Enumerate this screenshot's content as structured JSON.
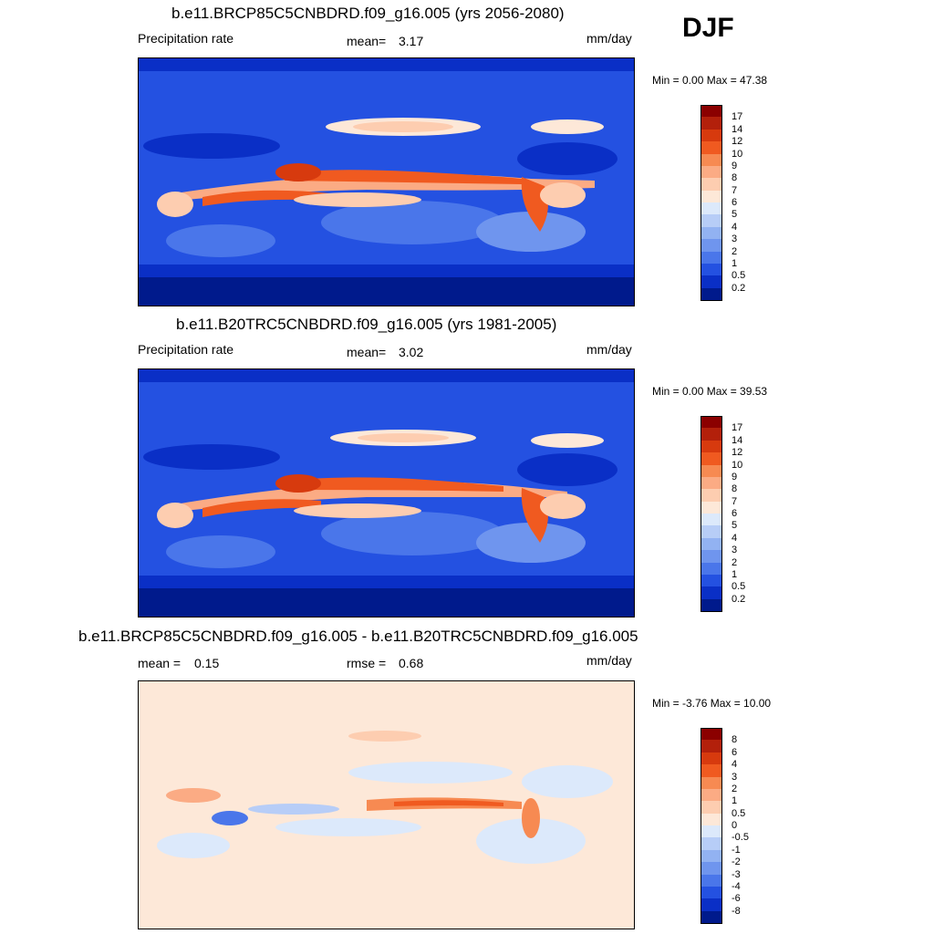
{
  "season": "DJF",
  "units": "mm/day",
  "panels": [
    {
      "title": "b.e11.BRCP85C5CNBDRD.f09_g16.005 (yrs 2056-2080)",
      "left_label": "Precipitation rate",
      "mid_label": "mean=",
      "mid_value": "3.17",
      "right_label": "mm/day",
      "minmax": "Min =   0.00 Max =  47.38",
      "colorbar": {
        "labels": [
          "17",
          "14",
          "12",
          "10",
          "9",
          "8",
          "7",
          "6",
          "5",
          "4",
          "3",
          "2",
          "1",
          "0.5",
          "0.2"
        ],
        "colors": [
          "#8b0000",
          "#b3200b",
          "#d73a0e",
          "#f05a20",
          "#f78a52",
          "#fbab84",
          "#fdcdb0",
          "#fde8d8",
          "#dce9fb",
          "#b7cdf7",
          "#92b2f2",
          "#6f95ee",
          "#4a76ea",
          "#2451e1",
          "#0a2fc6",
          "#001a8c"
        ]
      }
    },
    {
      "title": "b.e11.B20TRC5CNBDRD.f09_g16.005 (yrs 1981-2005)",
      "left_label": "Precipitation rate",
      "mid_label": "mean=",
      "mid_value": "3.02",
      "right_label": "mm/day",
      "minmax": "Min =   0.00 Max =  39.53",
      "colorbar": {
        "labels": [
          "17",
          "14",
          "12",
          "10",
          "9",
          "8",
          "7",
          "6",
          "5",
          "4",
          "3",
          "2",
          "1",
          "0.5",
          "0.2"
        ],
        "colors": [
          "#8b0000",
          "#b3200b",
          "#d73a0e",
          "#f05a20",
          "#f78a52",
          "#fbab84",
          "#fdcdb0",
          "#fde8d8",
          "#dce9fb",
          "#b7cdf7",
          "#92b2f2",
          "#6f95ee",
          "#4a76ea",
          "#2451e1",
          "#0a2fc6",
          "#001a8c"
        ]
      }
    },
    {
      "title": "b.e11.BRCP85C5CNBDRD.f09_g16.005 - b.e11.B20TRC5CNBDRD.f09_g16.005",
      "left_label": "mean =",
      "left_value": "0.15",
      "mid_label": "rmse =",
      "mid_value": "0.68",
      "right_label": "mm/day",
      "minmax": "Min =  -3.76 Max =  10.00",
      "colorbar": {
        "labels": [
          "8",
          "6",
          "4",
          "3",
          "2",
          "1",
          "0.5",
          "0",
          "-0.5",
          "-1",
          "-2",
          "-3",
          "-4",
          "-6",
          "-8"
        ],
        "colors": [
          "#8b0000",
          "#b3200b",
          "#d73a0e",
          "#f05a20",
          "#f78a52",
          "#fbab84",
          "#fdcdb0",
          "#fde8d8",
          "#dce9fb",
          "#b7cdf7",
          "#92b2f2",
          "#6f95ee",
          "#4a76ea",
          "#2451e1",
          "#0a2fc6",
          "#001a8c"
        ]
      }
    }
  ]
}
